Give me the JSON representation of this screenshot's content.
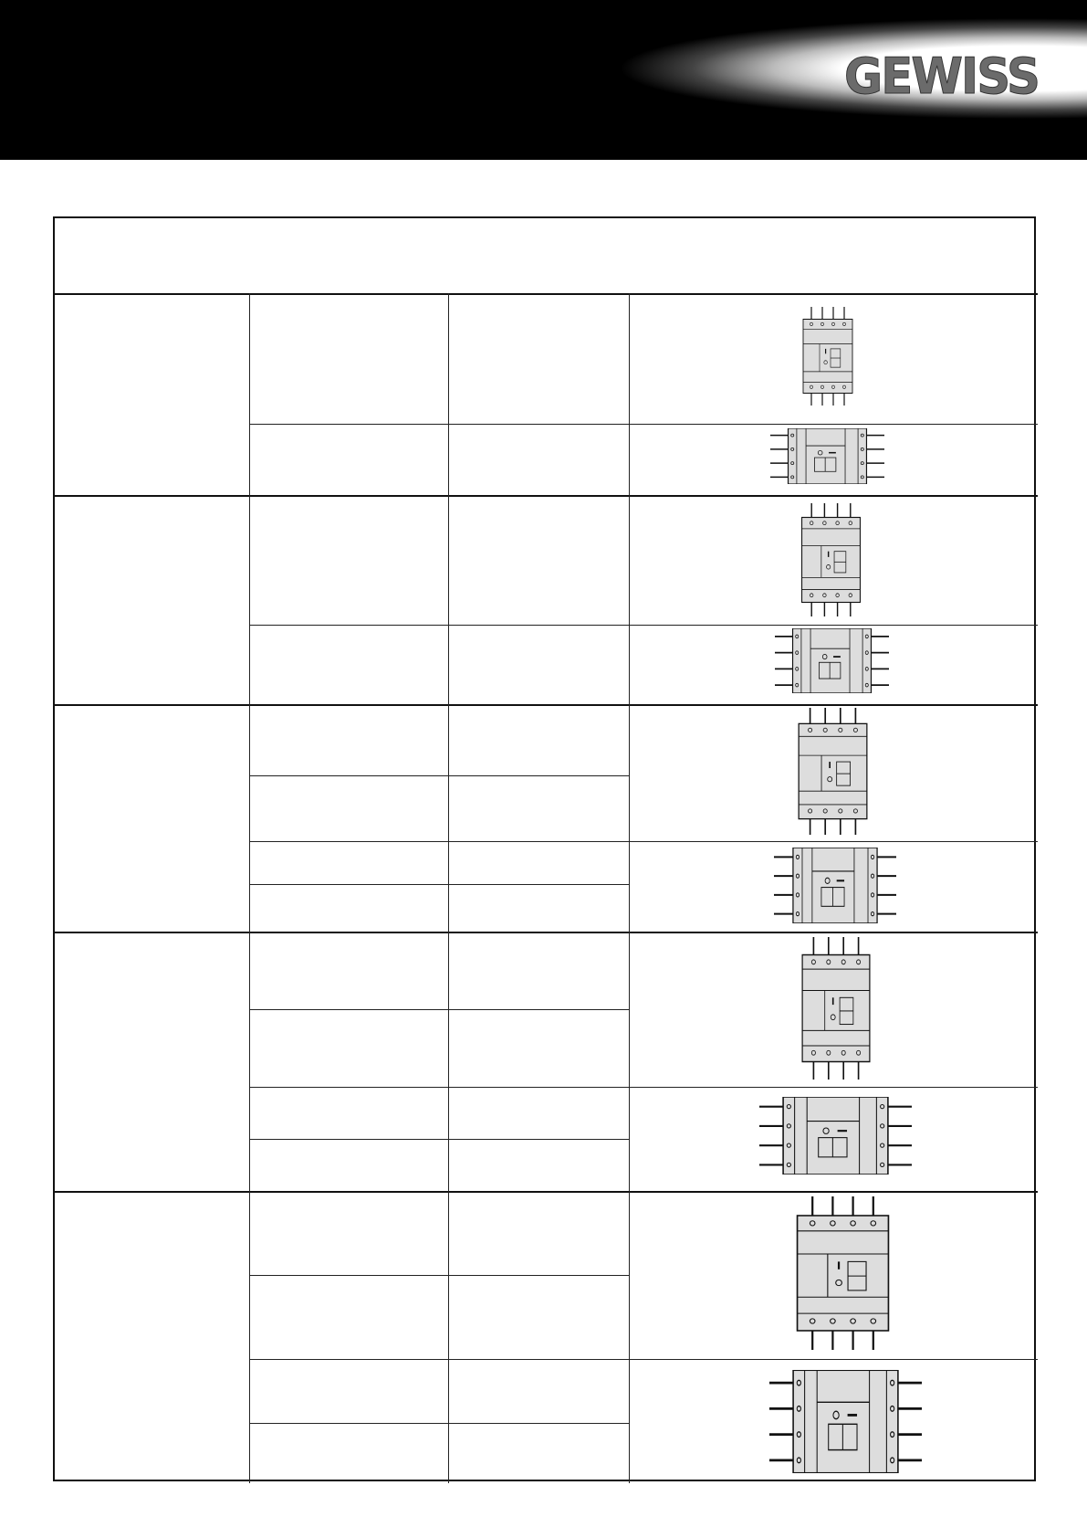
{
  "header": {
    "logo_text": "GEWISS"
  },
  "table": {
    "groups": 5,
    "images": [
      {
        "front": "breaker-front-view-icon",
        "side": "breaker-side-view-icon"
      },
      {
        "front": "breaker-front-view-icon",
        "side": "breaker-side-view-icon"
      },
      {
        "front": "breaker-front-view-icon",
        "side": "breaker-side-view-icon"
      },
      {
        "front": "breaker-front-view-icon",
        "side": "breaker-side-view-icon"
      },
      {
        "front": "breaker-front-view-icon",
        "side": "breaker-side-view-icon"
      }
    ]
  }
}
